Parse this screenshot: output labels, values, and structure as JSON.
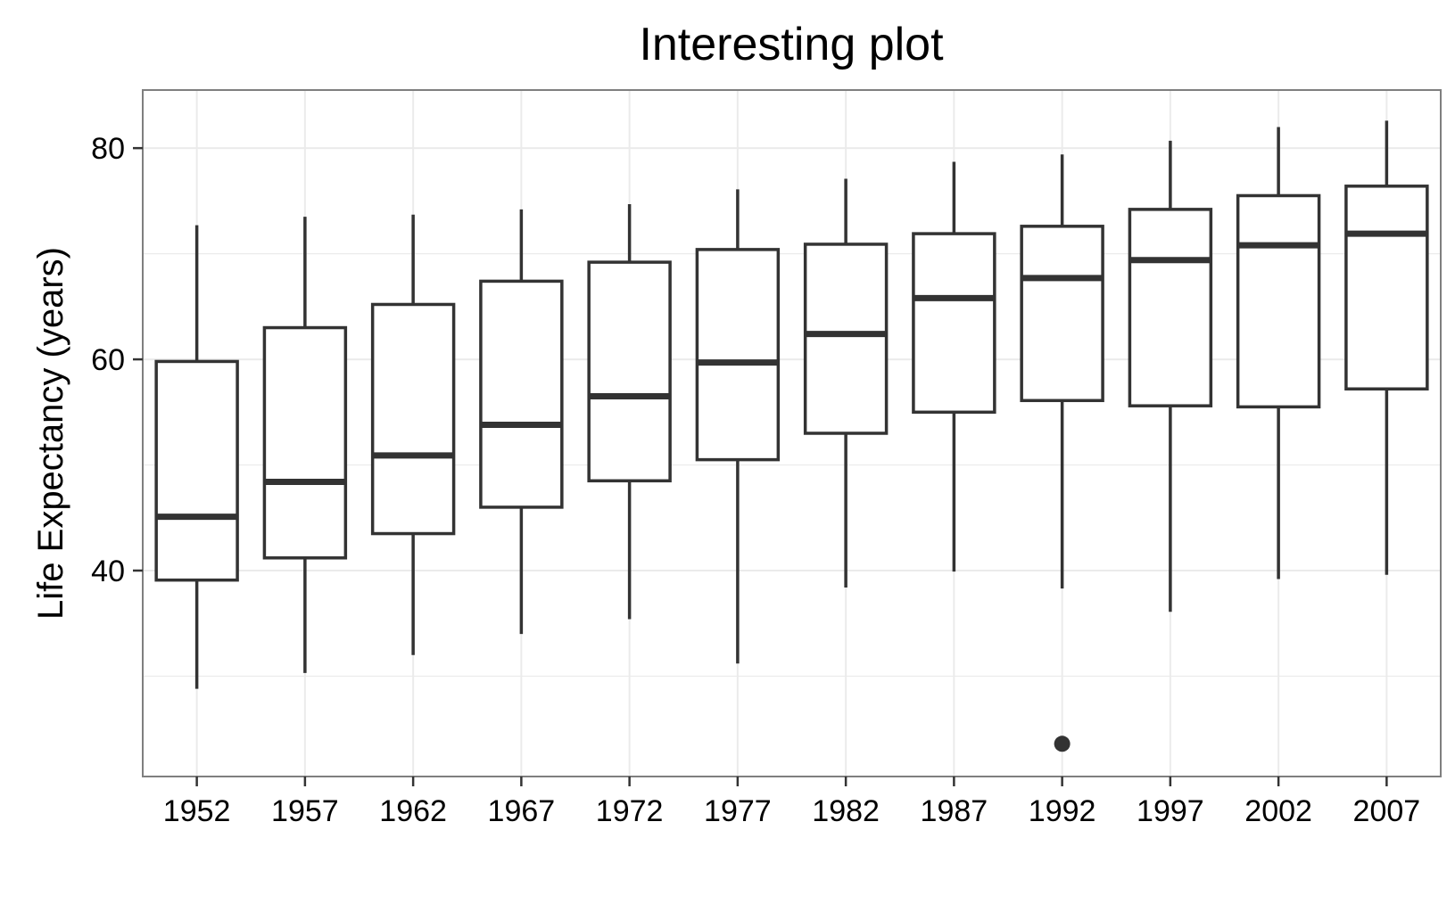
{
  "chart_data": {
    "type": "boxplot",
    "title": "Interesting plot",
    "xlabel": "",
    "ylabel": "Life Expectancy (years)",
    "ylim": [
      20.5,
      85.5
    ],
    "y_ticks": [
      40,
      60,
      80
    ],
    "grid": true,
    "theme": "bw",
    "categories": [
      "1952",
      "1957",
      "1962",
      "1967",
      "1972",
      "1977",
      "1982",
      "1987",
      "1992",
      "1997",
      "2002",
      "2007"
    ],
    "boxes": [
      {
        "x": "1952",
        "min": 28.8,
        "q1": 39.1,
        "median": 45.1,
        "q3": 59.8,
        "max": 72.7,
        "outliers": []
      },
      {
        "x": "1957",
        "min": 30.3,
        "q1": 41.2,
        "median": 48.4,
        "q3": 63.0,
        "max": 73.5,
        "outliers": []
      },
      {
        "x": "1962",
        "min": 32.0,
        "q1": 43.5,
        "median": 50.9,
        "q3": 65.2,
        "max": 73.7,
        "outliers": []
      },
      {
        "x": "1967",
        "min": 34.0,
        "q1": 46.0,
        "median": 53.8,
        "q3": 67.4,
        "max": 74.2,
        "outliers": []
      },
      {
        "x": "1972",
        "min": 35.4,
        "q1": 48.5,
        "median": 56.5,
        "q3": 69.2,
        "max": 74.7,
        "outliers": []
      },
      {
        "x": "1977",
        "min": 31.2,
        "q1": 50.5,
        "median": 59.7,
        "q3": 70.4,
        "max": 76.1,
        "outliers": []
      },
      {
        "x": "1982",
        "min": 38.4,
        "q1": 53.0,
        "median": 62.4,
        "q3": 70.9,
        "max": 77.1,
        "outliers": []
      },
      {
        "x": "1987",
        "min": 39.9,
        "q1": 55.0,
        "median": 65.8,
        "q3": 71.9,
        "max": 78.7,
        "outliers": []
      },
      {
        "x": "1992",
        "min": 38.3,
        "q1": 56.1,
        "median": 67.7,
        "q3": 72.6,
        "max": 79.4,
        "outliers": [
          23.6
        ]
      },
      {
        "x": "1997",
        "min": 36.1,
        "q1": 55.6,
        "median": 69.4,
        "q3": 74.2,
        "max": 80.7,
        "outliers": []
      },
      {
        "x": "2002",
        "min": 39.2,
        "q1": 55.5,
        "median": 70.8,
        "q3": 75.5,
        "max": 82.0,
        "outliers": []
      },
      {
        "x": "2007",
        "min": 39.6,
        "q1": 57.2,
        "median": 71.9,
        "q3": 76.4,
        "max": 82.6,
        "outliers": []
      }
    ],
    "colors": {
      "box_stroke": "#333333",
      "grid": "#ebebeb",
      "panel_border": "#7f7f7f",
      "tick": "#333333"
    }
  }
}
